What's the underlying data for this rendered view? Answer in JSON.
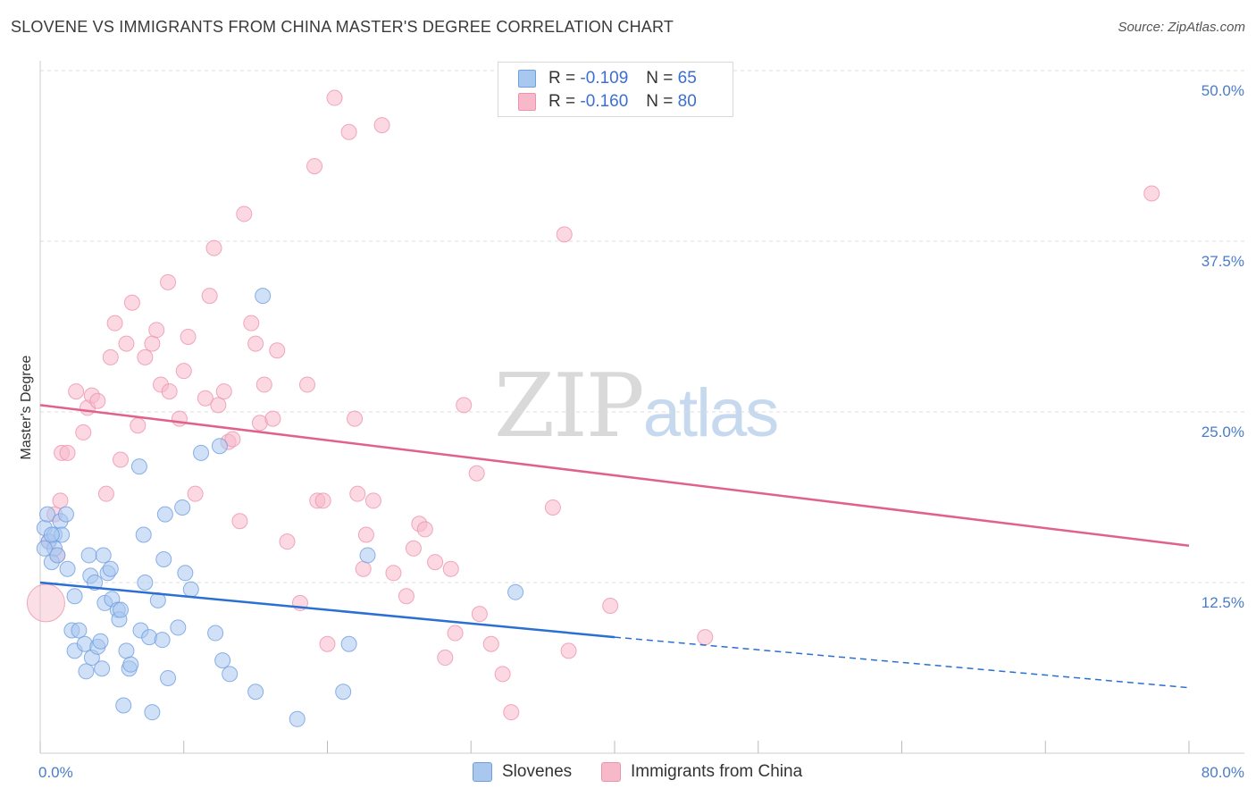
{
  "title": "SLOVENE VS IMMIGRANTS FROM CHINA MASTER'S DEGREE CORRELATION CHART",
  "source": "Source: ZipAtlas.com",
  "watermark": {
    "zip": "ZIP",
    "atlas": "atlas"
  },
  "legend": {
    "slovenes": {
      "r_label": "R =",
      "r_value": "-0.109",
      "n_label": "N =",
      "n_value": "65"
    },
    "china": {
      "r_label": "R =",
      "r_value": "-0.160",
      "n_label": "N =",
      "n_value": "80"
    }
  },
  "bottom_legend": {
    "slovenes": "Slovenes",
    "china": "Immigrants from China"
  },
  "colors": {
    "slovenes_fill": "#a9c8f0",
    "slovenes_stroke": "#6f9ee0",
    "slovenes_line": "#2a6fd1",
    "china_fill": "#f7b8ca",
    "china_stroke": "#ec94ae",
    "china_line": "#e0628c",
    "tick": "#4a7cc9",
    "grid": "#dddddd"
  },
  "chart_data": {
    "type": "scatter",
    "title": "SLOVENE VS IMMIGRANTS FROM CHINA MASTER'S DEGREE CORRELATION CHART",
    "xlabel": "",
    "ylabel": "Master's Degree",
    "xlim": [
      0,
      80
    ],
    "ylim": [
      0,
      50
    ],
    "x_tick_labels": [
      {
        "value": 0,
        "label": "0.0%"
      },
      {
        "value": 80,
        "label": "80.0%"
      }
    ],
    "y_tick_labels": [
      {
        "value": 12.5,
        "label": "12.5%"
      },
      {
        "value": 25,
        "label": "25.0%"
      },
      {
        "value": 37.5,
        "label": "37.5%"
      },
      {
        "value": 50,
        "label": "50.0%"
      }
    ],
    "series": [
      {
        "name": "Slovenes",
        "r": -0.109,
        "n": 65,
        "points": [
          [
            0.3,
            16.5
          ],
          [
            0.5,
            17.5
          ],
          [
            0.6,
            15.5
          ],
          [
            0.8,
            14
          ],
          [
            1.0,
            16
          ],
          [
            1.0,
            15
          ],
          [
            1.2,
            14.5
          ],
          [
            1.4,
            17
          ],
          [
            1.5,
            16
          ],
          [
            1.8,
            17.5
          ],
          [
            1.9,
            13.5
          ],
          [
            2.2,
            9
          ],
          [
            2.4,
            11.5
          ],
          [
            2.4,
            7.5
          ],
          [
            2.7,
            9
          ],
          [
            3.1,
            8
          ],
          [
            3.2,
            6
          ],
          [
            3.4,
            14.5
          ],
          [
            3.5,
            13
          ],
          [
            3.6,
            7
          ],
          [
            3.8,
            12.5
          ],
          [
            4.0,
            7.8
          ],
          [
            4.2,
            8.2
          ],
          [
            4.3,
            6.2
          ],
          [
            4.4,
            14.5
          ],
          [
            4.5,
            11
          ],
          [
            4.7,
            13.2
          ],
          [
            4.9,
            13.5
          ],
          [
            5.0,
            11.3
          ],
          [
            5.4,
            10.5
          ],
          [
            5.5,
            9.8
          ],
          [
            5.6,
            10.5
          ],
          [
            5.8,
            3.5
          ],
          [
            6.0,
            7.5
          ],
          [
            6.2,
            6.2
          ],
          [
            6.3,
            6.5
          ],
          [
            6.9,
            21
          ],
          [
            7.0,
            9
          ],
          [
            7.2,
            16
          ],
          [
            7.3,
            12.5
          ],
          [
            7.6,
            8.5
          ],
          [
            7.8,
            3
          ],
          [
            8.2,
            11.2
          ],
          [
            8.5,
            8.3
          ],
          [
            8.6,
            14.2
          ],
          [
            8.7,
            17.5
          ],
          [
            8.9,
            5.5
          ],
          [
            9.6,
            9.2
          ],
          [
            9.9,
            18
          ],
          [
            10.1,
            13.2
          ],
          [
            10.5,
            12
          ],
          [
            11.2,
            22
          ],
          [
            12.2,
            8.8
          ],
          [
            12.5,
            22.5
          ],
          [
            12.7,
            6.8
          ],
          [
            13.2,
            5.8
          ],
          [
            15.0,
            4.5
          ],
          [
            15.5,
            33.5
          ],
          [
            17.9,
            2.5
          ],
          [
            21.1,
            4.5
          ],
          [
            21.5,
            8
          ],
          [
            22.8,
            14.5
          ],
          [
            33.1,
            11.8
          ],
          [
            0.3,
            15
          ],
          [
            0.8,
            16
          ]
        ]
      },
      {
        "name": "Immigrants from China",
        "r": -0.16,
        "n": 80,
        "points": [
          [
            0.4,
            11
          ],
          [
            0.6,
            15.5
          ],
          [
            1.0,
            17.5
          ],
          [
            1.2,
            14.5
          ],
          [
            1.4,
            18.5
          ],
          [
            1.5,
            22
          ],
          [
            1.9,
            22
          ],
          [
            2.5,
            26.5
          ],
          [
            3.0,
            23.5
          ],
          [
            3.3,
            25.3
          ],
          [
            3.6,
            26.2
          ],
          [
            4.0,
            25.8
          ],
          [
            4.6,
            19
          ],
          [
            4.9,
            29
          ],
          [
            5.2,
            31.5
          ],
          [
            5.6,
            21.5
          ],
          [
            6.0,
            30
          ],
          [
            6.4,
            33
          ],
          [
            6.8,
            24
          ],
          [
            7.3,
            29
          ],
          [
            7.8,
            30
          ],
          [
            8.1,
            31
          ],
          [
            8.4,
            27
          ],
          [
            8.9,
            34.5
          ],
          [
            9.0,
            26.5
          ],
          [
            9.7,
            24.5
          ],
          [
            10.0,
            28
          ],
          [
            10.3,
            30.5
          ],
          [
            10.8,
            19
          ],
          [
            11.5,
            26
          ],
          [
            11.8,
            33.5
          ],
          [
            12.1,
            37
          ],
          [
            12.4,
            25.5
          ],
          [
            12.8,
            26.5
          ],
          [
            13.1,
            22.8
          ],
          [
            13.4,
            23
          ],
          [
            13.9,
            17
          ],
          [
            14.2,
            39.5
          ],
          [
            14.7,
            31.5
          ],
          [
            15.0,
            30
          ],
          [
            15.3,
            24.2
          ],
          [
            15.6,
            27
          ],
          [
            16.2,
            24.5
          ],
          [
            16.5,
            29.5
          ],
          [
            17.2,
            15.5
          ],
          [
            18.1,
            11
          ],
          [
            18.6,
            27
          ],
          [
            19.1,
            43
          ],
          [
            19.3,
            18.5
          ],
          [
            19.7,
            18.5
          ],
          [
            20.0,
            8
          ],
          [
            20.5,
            48
          ],
          [
            21.5,
            45.5
          ],
          [
            21.9,
            24.5
          ],
          [
            22.1,
            19
          ],
          [
            22.5,
            13.5
          ],
          [
            22.7,
            16
          ],
          [
            23.2,
            18.5
          ],
          [
            23.8,
            46
          ],
          [
            24.6,
            13.2
          ],
          [
            25.5,
            11.5
          ],
          [
            26.0,
            15
          ],
          [
            26.4,
            16.8
          ],
          [
            26.8,
            16.4
          ],
          [
            27.5,
            14
          ],
          [
            28.2,
            7
          ],
          [
            28.6,
            13.5
          ],
          [
            28.9,
            8.8
          ],
          [
            29.5,
            25.5
          ],
          [
            30.4,
            20.5
          ],
          [
            30.6,
            10.2
          ],
          [
            31.4,
            8
          ],
          [
            32.2,
            5.8
          ],
          [
            32.8,
            3
          ],
          [
            35.7,
            18
          ],
          [
            36.5,
            38
          ],
          [
            36.8,
            7.5
          ],
          [
            39.7,
            10.8
          ],
          [
            46.3,
            8.5
          ],
          [
            77.4,
            41
          ]
        ]
      }
    ],
    "trend_lines": [
      {
        "series": "Slovenes",
        "solid": [
          [
            0,
            12.5
          ],
          [
            40,
            8.5
          ]
        ],
        "dashed": [
          [
            40,
            8.5
          ],
          [
            80,
            4.8
          ]
        ]
      },
      {
        "series": "Immigrants from China",
        "solid": [
          [
            0,
            25.5
          ],
          [
            80,
            15.2
          ]
        ]
      }
    ]
  }
}
